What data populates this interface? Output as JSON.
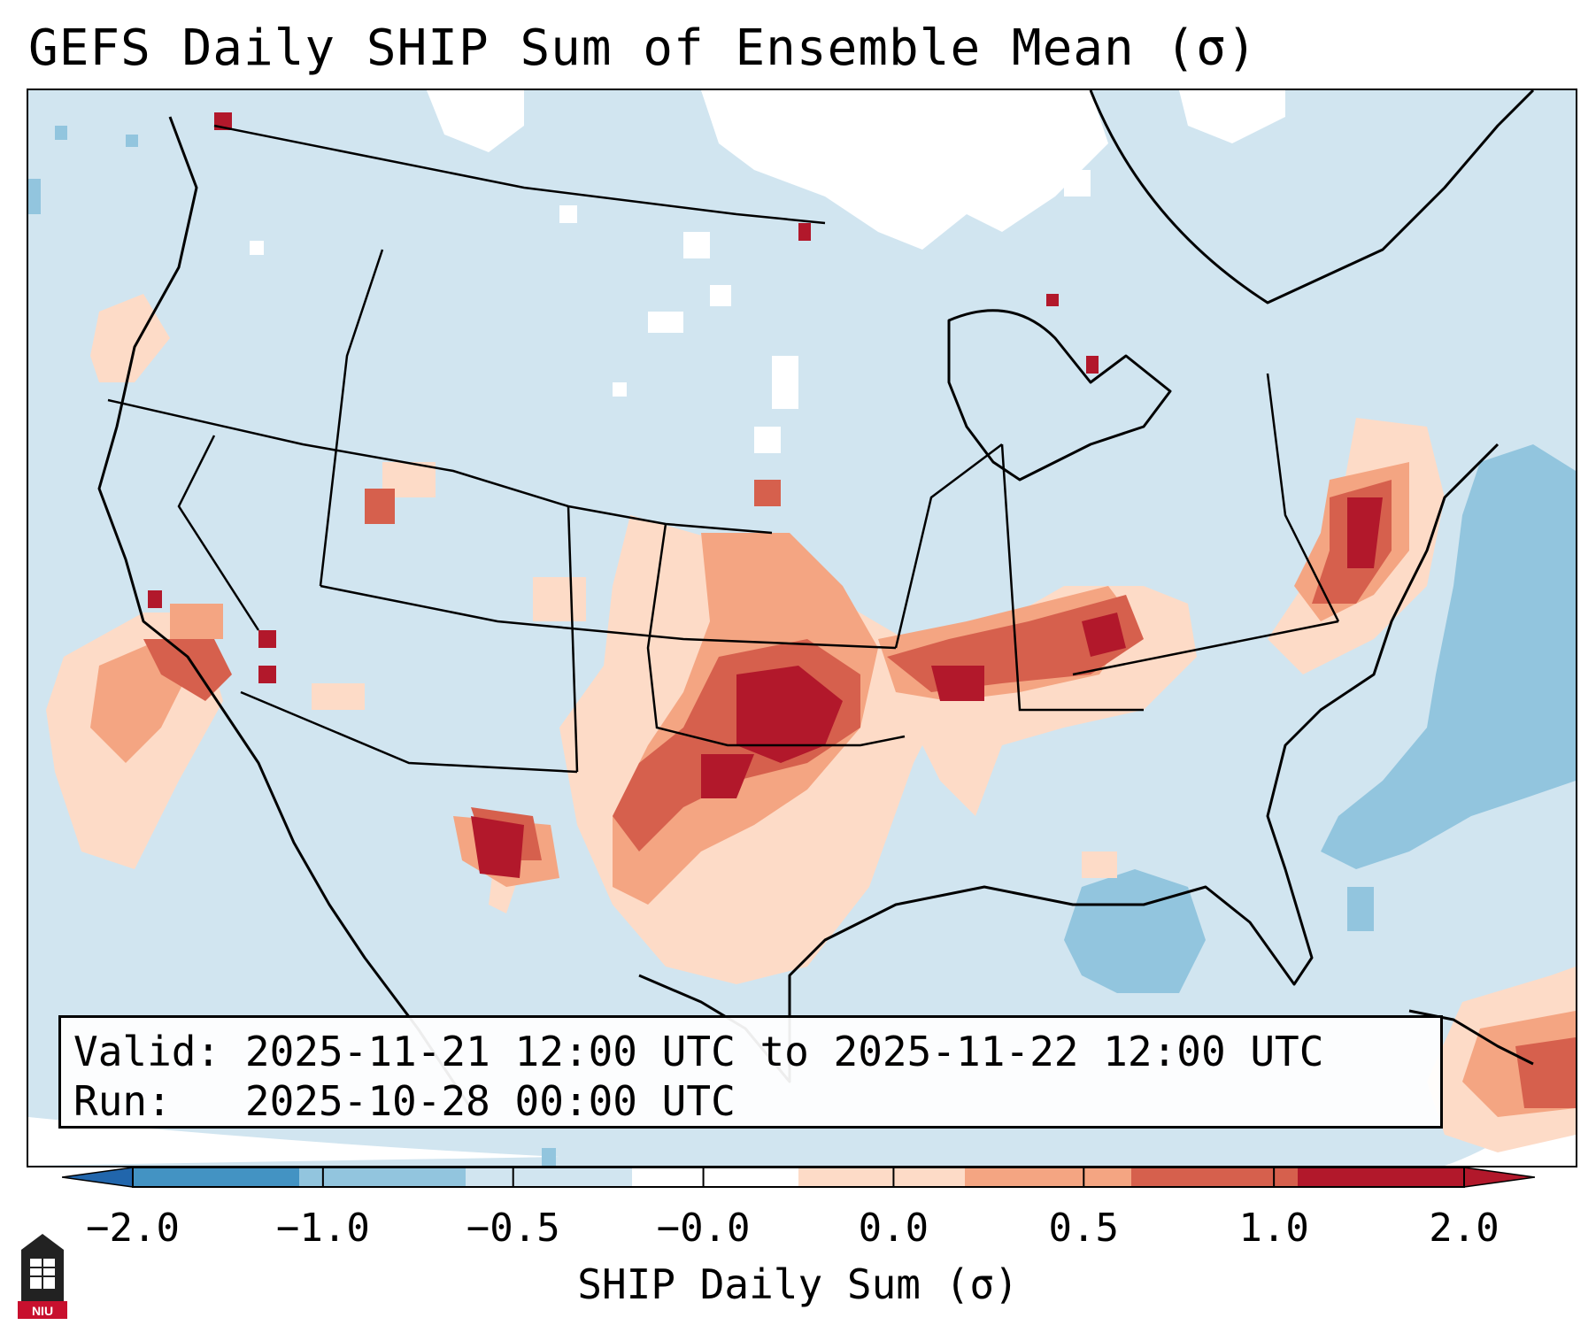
{
  "title": "GEFS Daily SHIP Sum of Ensemble Mean (σ)",
  "info": {
    "valid_label": "Valid:",
    "valid_value": "2025-11-21 12:00 UTC to 2025-11-22 12:00 UTC",
    "run_label": "Run:",
    "run_value": "2025-10-28 00:00 UTC"
  },
  "colorbar": {
    "label": "SHIP Daily Sum (σ)",
    "ticks": [
      "−2.0",
      "−1.0",
      "−0.5",
      "−0.0",
      "0.0",
      "0.5",
      "1.0",
      "2.0"
    ],
    "colors": [
      "#4393c3",
      "#92c5de",
      "#d1e5f0",
      "#ffffff",
      "#fddbc7",
      "#f4a582",
      "#d6604d",
      "#b2182b"
    ]
  },
  "logo": {
    "text": "NIU"
  },
  "map": {
    "background_color": "#d1e5f0",
    "regions": [
      {
        "name": "snow-white-north-plains",
        "level": "-0.0"
      },
      {
        "name": "pacific-blue-pocket",
        "level": "-0.5"
      },
      {
        "name": "gulf-blue-pocket",
        "level": "-0.5"
      },
      {
        "name": "atlantic-blue-pocket",
        "level": "-0.5"
      },
      {
        "name": "southern-plains-high",
        "level": "1.0"
      },
      {
        "name": "oklahoma-core",
        "level": "2.0"
      },
      {
        "name": "new-mexico-core",
        "level": "2.0"
      },
      {
        "name": "ohio-valley-band",
        "level": "1.0"
      },
      {
        "name": "mid-atlantic-band",
        "level": "1.0"
      },
      {
        "name": "california-offshore",
        "level": "0.5"
      },
      {
        "name": "caribbean-band",
        "level": "0.5"
      }
    ]
  }
}
